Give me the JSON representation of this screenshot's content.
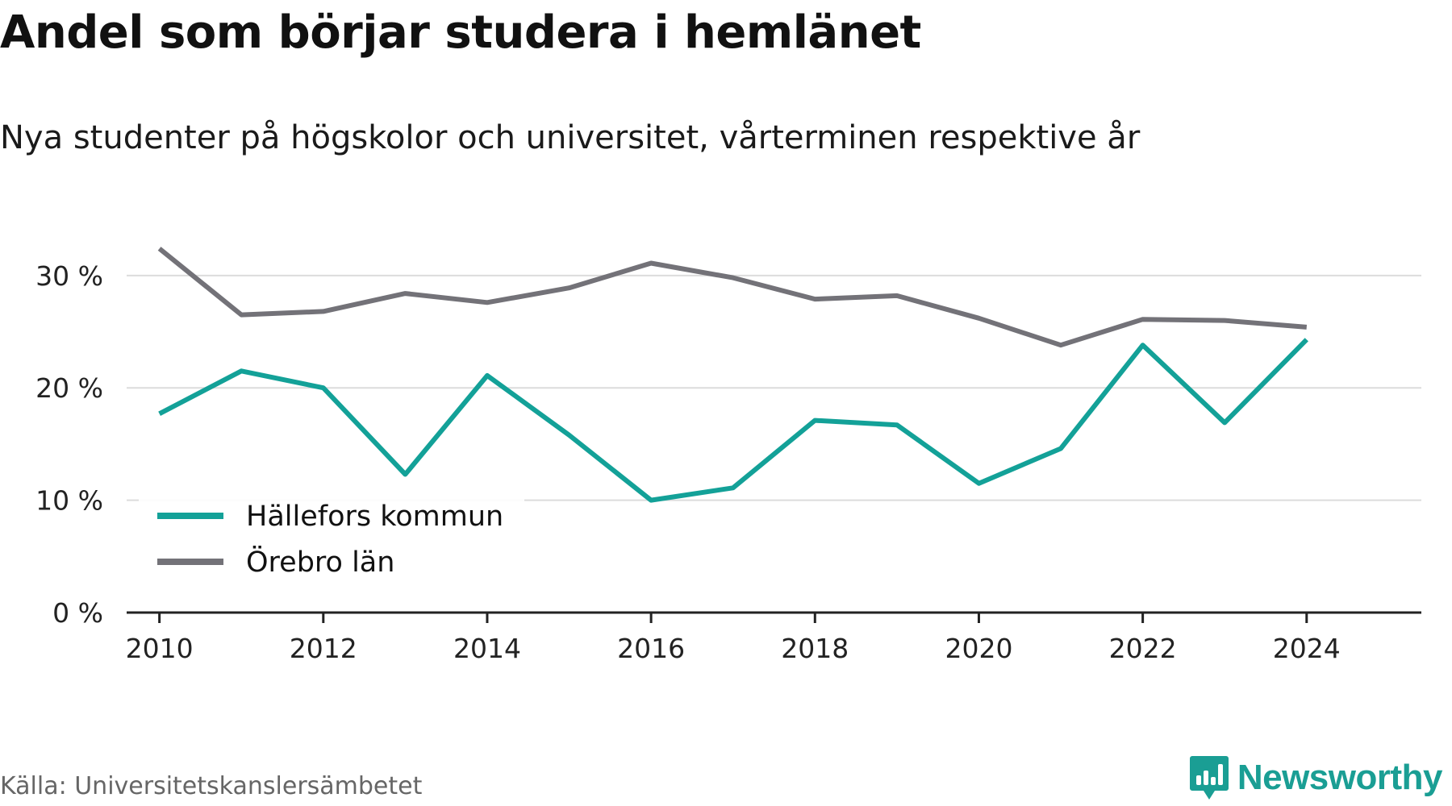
{
  "title": "Andel som börjar studera i hemlänet",
  "subtitle": "Nya studenter på högskolor och universitet, vårterminen respektive år",
  "source": "Källa: Universitetskanslersämbetet",
  "brand": {
    "name": "Newsworthy",
    "icon": "newsworthy-logo-icon",
    "color": "#1a9e94"
  },
  "chart_data": {
    "type": "line",
    "x": [
      2010,
      2011,
      2012,
      2013,
      2014,
      2015,
      2016,
      2017,
      2018,
      2019,
      2020,
      2021,
      2022,
      2023,
      2024
    ],
    "x_ticks": [
      2010,
      2012,
      2014,
      2016,
      2018,
      2020,
      2022,
      2024
    ],
    "x_tick_labels": [
      "2010",
      "2012",
      "2014",
      "2016",
      "2018",
      "2020",
      "2022",
      "2024"
    ],
    "xlim": [
      2009.6,
      2025.4
    ],
    "ylim": [
      0,
      33
    ],
    "y_ticks": [
      0,
      10,
      20,
      30
    ],
    "y_tick_labels": [
      "0 %",
      "10 %",
      "20 %",
      "30 %"
    ],
    "grid": "horizontal",
    "legend_position": "bottom-left",
    "series": [
      {
        "name": "Hällefors kommun",
        "color": "#13a198",
        "values": [
          17.7,
          21.5,
          20.0,
          12.3,
          21.1,
          15.8,
          10.0,
          11.1,
          17.1,
          16.7,
          11.5,
          14.6,
          23.8,
          16.9,
          24.3
        ]
      },
      {
        "name": "Örebro län",
        "color": "#737278",
        "values": [
          32.4,
          26.5,
          26.8,
          28.4,
          27.6,
          28.9,
          31.1,
          29.8,
          27.9,
          28.2,
          26.2,
          23.8,
          26.1,
          26.0,
          25.4
        ]
      }
    ]
  }
}
